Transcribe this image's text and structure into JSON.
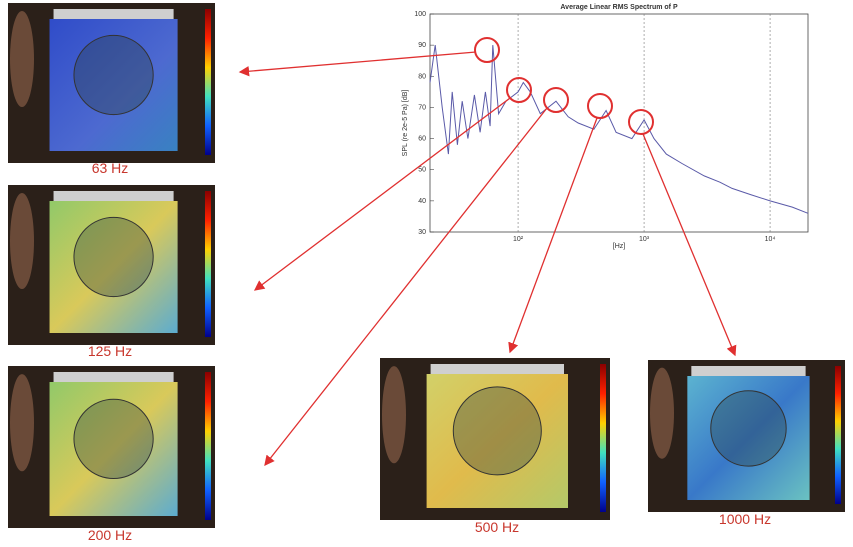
{
  "chart_data": {
    "type": "line",
    "title": "Average Linear RMS Spectrum of P",
    "x_label": "[Hz]",
    "y_label": "SPL (re 2e-5 Pa) [dB]",
    "log_x": true,
    "grid": true,
    "xlim": [
      20,
      20000
    ],
    "ylim": [
      30,
      100
    ],
    "xticks": [
      {
        "value": 100,
        "label": "10²"
      },
      {
        "value": 1000,
        "label": "10³"
      },
      {
        "value": 10000,
        "label": "10⁴"
      }
    ],
    "yticks": [
      30,
      40,
      50,
      60,
      70,
      80,
      90,
      100
    ],
    "x": [
      20,
      22,
      25,
      28,
      30,
      33,
      36,
      40,
      45,
      50,
      55,
      60,
      63,
      70,
      80,
      100,
      110,
      125,
      150,
      200,
      250,
      300,
      400,
      500,
      600,
      800,
      1000,
      1200,
      1500,
      2000,
      3000,
      4000,
      5000,
      7000,
      10000,
      15000,
      20000
    ],
    "series": [
      {
        "color": "#5a5aa8",
        "values": [
          78,
          90,
          70,
          55,
          75,
          58,
          72,
          60,
          74,
          62,
          75,
          64,
          90,
          68,
          72,
          75,
          78,
          75,
          68,
          72,
          67,
          65,
          63,
          69,
          62,
          60,
          66,
          60,
          55,
          52,
          48,
          46,
          44,
          42,
          40,
          38,
          36
        ]
      }
    ]
  },
  "panels": [
    {
      "label": "63 Hz"
    },
    {
      "label": "125 Hz"
    },
    {
      "label": "200 Hz"
    },
    {
      "label": "500 Hz"
    },
    {
      "label": "1000 Hz"
    }
  ]
}
